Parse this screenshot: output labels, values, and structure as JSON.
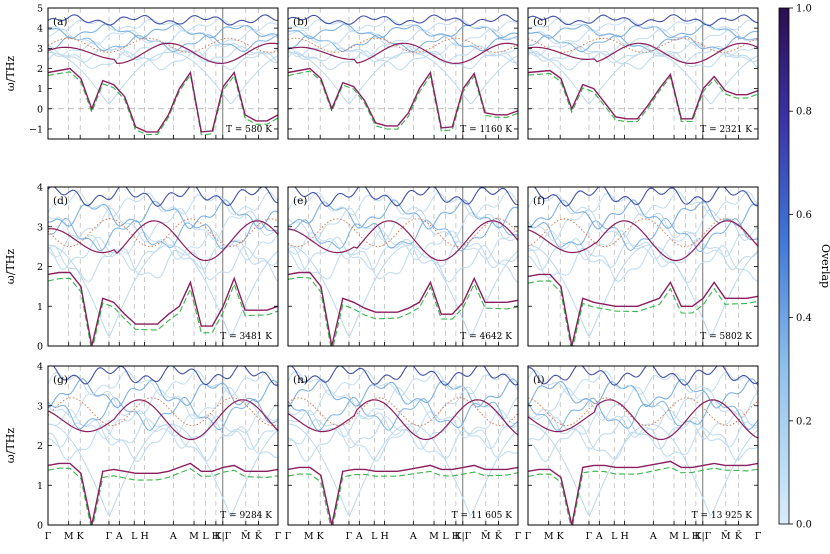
{
  "figure": {
    "y_axis_label": "ω/THz",
    "colorbar": {
      "label": "Overlap",
      "ticks": [
        "0.0",
        "0.2",
        "0.4",
        "0.6",
        "0.8",
        "1.0"
      ],
      "range": [
        0,
        1
      ],
      "colors": [
        "#cfe6f7",
        "#7fb6e8",
        "#3a6fd6",
        "#3b2fa6",
        "#2a0f4f"
      ]
    },
    "colors": {
      "bands_light": "#bcd9ef",
      "bands_mid": "#6fa8e0",
      "bands_dark": "#2f3f9f",
      "highlight": "#8b1e5f",
      "harmonic_dashed": "#39b54a",
      "dotted": "#e07a4e",
      "zero_line": "#aaaaaa",
      "frame": "#000000"
    }
  },
  "chart_data": [
    {
      "type": "line",
      "tag": "(a)",
      "temperature": "T = 580 K",
      "ylim": [
        -1.5,
        5
      ],
      "yticks": [
        -1,
        0,
        1,
        2,
        3,
        4,
        5
      ],
      "ytick_labels": [
        "−1",
        "0",
        "1",
        "2",
        "3",
        "4",
        "5"
      ],
      "shows_zero_line": true,
      "lowest_band": [
        1.8,
        1.9,
        2.0,
        1.5,
        0,
        1.4,
        1.2,
        0.6,
        -0.9,
        -1.15,
        -1.15,
        -0.3,
        1.0,
        1.8,
        -1.15,
        -1.1,
        1.1,
        1.8,
        -0.3,
        -0.6,
        -0.6,
        -0.3
      ]
    },
    {
      "type": "line",
      "tag": "(b)",
      "temperature": "T = 1160 K",
      "ylim": [
        -1.5,
        5
      ],
      "yticks": [
        -1,
        0,
        1,
        2,
        3,
        4,
        5
      ],
      "ytick_labels": [
        "−1",
        "0",
        "1",
        "2",
        "3",
        "4",
        "5"
      ],
      "shows_zero_line": true,
      "lowest_band": [
        1.8,
        1.9,
        2.0,
        1.5,
        0,
        1.3,
        1.1,
        0.4,
        -0.7,
        -0.85,
        -0.85,
        -0.2,
        1.0,
        1.8,
        -0.95,
        -0.9,
        1.0,
        1.75,
        -0.2,
        -0.3,
        -0.3,
        -0.1
      ]
    },
    {
      "type": "line",
      "tag": "(c)",
      "temperature": "T = 2321 K",
      "ylim": [
        -1.5,
        5
      ],
      "yticks": [
        -1,
        0,
        1,
        2,
        3,
        4,
        5
      ],
      "ytick_labels": [
        "−1",
        "0",
        "1",
        "2",
        "3",
        "4",
        "5"
      ],
      "shows_zero_line": true,
      "lowest_band": [
        1.8,
        1.85,
        1.9,
        1.5,
        0,
        1.2,
        1.0,
        0.3,
        -0.4,
        -0.5,
        -0.5,
        0.2,
        1.0,
        1.7,
        -0.5,
        -0.5,
        1.0,
        1.6,
        0.9,
        0.7,
        0.7,
        0.9
      ]
    },
    {
      "type": "line",
      "tag": "(d)",
      "temperature": "T = 3481 K",
      "ylim": [
        0,
        4
      ],
      "yticks": [
        0,
        1,
        2,
        3,
        4
      ],
      "ytick_labels": [
        "0",
        "1",
        "2",
        "3",
        "4"
      ],
      "shows_zero_line": false,
      "lowest_band": [
        1.8,
        1.85,
        1.85,
        1.5,
        0,
        1.2,
        1.1,
        0.8,
        0.55,
        0.55,
        0.55,
        0.8,
        1.0,
        1.6,
        0.5,
        0.5,
        1.0,
        1.7,
        0.9,
        0.9,
        0.9,
        1.0
      ]
    },
    {
      "type": "line",
      "tag": "(e)",
      "temperature": "T = 4642 K",
      "ylim": [
        0,
        4
      ],
      "yticks": [
        0,
        1,
        2,
        3,
        4
      ],
      "ytick_labels": [
        "0",
        "1",
        "2",
        "3",
        "4"
      ],
      "shows_zero_line": false,
      "lowest_band": [
        1.8,
        1.85,
        1.85,
        1.5,
        0,
        1.2,
        1.1,
        0.95,
        0.85,
        0.85,
        0.85,
        0.95,
        1.1,
        1.6,
        0.8,
        0.8,
        1.1,
        1.7,
        1.1,
        1.1,
        1.1,
        1.15
      ]
    },
    {
      "type": "line",
      "tag": "(f)",
      "temperature": "T = 5802 K",
      "ylim": [
        0,
        4
      ],
      "yticks": [
        0,
        1,
        2,
        3,
        4
      ],
      "ytick_labels": [
        "0",
        "1",
        "2",
        "3",
        "4"
      ],
      "shows_zero_line": false,
      "lowest_band": [
        1.75,
        1.8,
        1.8,
        1.5,
        0,
        1.2,
        1.1,
        1.05,
        1.0,
        1.0,
        1.0,
        1.1,
        1.2,
        1.6,
        1.0,
        1.0,
        1.2,
        1.6,
        1.2,
        1.2,
        1.2,
        1.25
      ]
    },
    {
      "type": "line",
      "tag": "(g)",
      "temperature": "T = 9284 K",
      "ylim": [
        0,
        4
      ],
      "yticks": [
        0,
        1,
        2,
        3,
        4
      ],
      "ytick_labels": [
        "0",
        "1",
        "2",
        "3",
        "4"
      ],
      "shows_zero_line": false,
      "lowest_band": [
        1.5,
        1.55,
        1.55,
        1.3,
        0,
        1.35,
        1.4,
        1.35,
        1.3,
        1.3,
        1.3,
        1.35,
        1.45,
        1.55,
        1.35,
        1.35,
        1.45,
        1.5,
        1.35,
        1.35,
        1.35,
        1.4
      ]
    },
    {
      "type": "line",
      "tag": "(h)",
      "temperature": "T = 11 605 K",
      "ylim": [
        0,
        4
      ],
      "yticks": [
        0,
        1,
        2,
        3,
        4
      ],
      "ytick_labels": [
        "0",
        "1",
        "2",
        "3",
        "4"
      ],
      "shows_zero_line": false,
      "lowest_band": [
        1.4,
        1.45,
        1.45,
        1.25,
        0,
        1.35,
        1.4,
        1.4,
        1.35,
        1.35,
        1.35,
        1.4,
        1.45,
        1.5,
        1.4,
        1.4,
        1.45,
        1.5,
        1.4,
        1.4,
        1.4,
        1.45
      ]
    },
    {
      "type": "line",
      "tag": "(i)",
      "temperature": "T = 13 925 K",
      "ylim": [
        0,
        4
      ],
      "yticks": [
        0,
        1,
        2,
        3,
        4
      ],
      "ytick_labels": [
        "0",
        "1",
        "2",
        "3",
        "4"
      ],
      "shows_zero_line": false,
      "lowest_band": [
        1.35,
        1.4,
        1.4,
        1.2,
        0,
        1.45,
        1.5,
        1.5,
        1.45,
        1.45,
        1.45,
        1.5,
        1.55,
        1.6,
        1.45,
        1.45,
        1.5,
        1.55,
        1.5,
        1.5,
        1.5,
        1.55
      ]
    }
  ],
  "k_path": {
    "labels": [
      "Γ",
      "M",
      "K",
      "Γ",
      "A",
      "L",
      "H",
      "A",
      "M",
      "L",
      "H",
      "K|Γ",
      "M̄",
      "K̄",
      "Γ̄"
    ],
    "positions": [
      0,
      0.09,
      0.14,
      0.265,
      0.31,
      0.375,
      0.42,
      0.545,
      0.635,
      0.685,
      0.73,
      0.76,
      0.86,
      0.915,
      1.0
    ],
    "gridlines": [
      0.09,
      0.14,
      0.265,
      0.31,
      0.375,
      0.42,
      0.545,
      0.635,
      0.685,
      0.73,
      0.86,
      0.915
    ],
    "path_break": 0.76
  }
}
